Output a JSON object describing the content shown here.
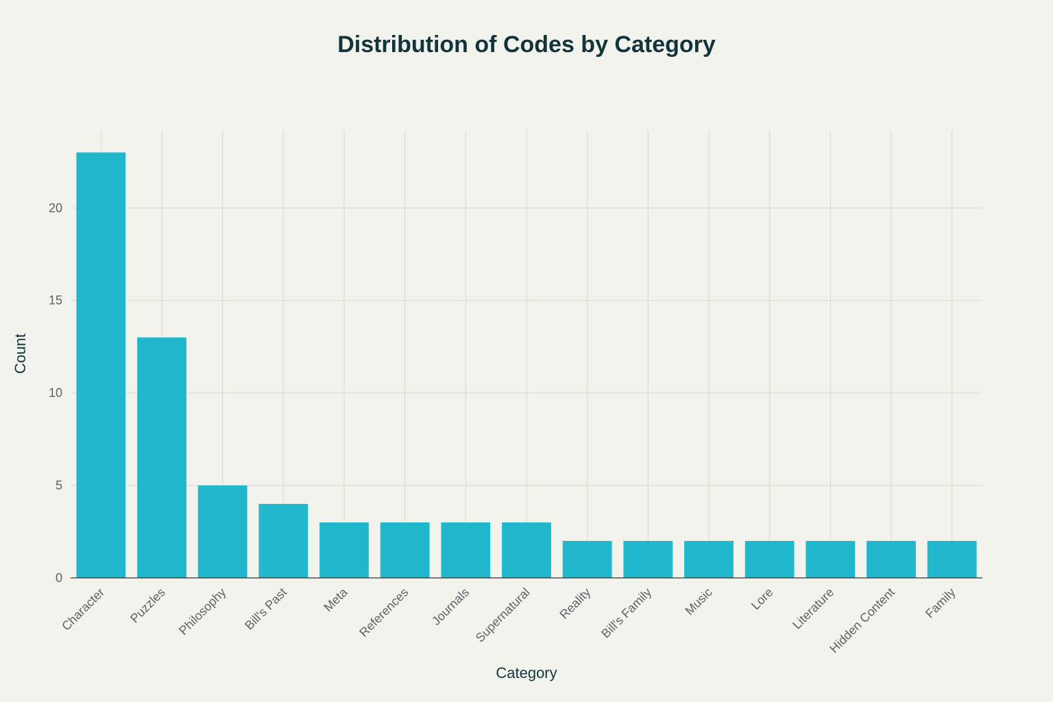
{
  "chart_data": {
    "type": "bar",
    "title": "Distribution of Codes by Category",
    "xlabel": "Category",
    "ylabel": "Count",
    "categories": [
      "Character",
      "Puzzles",
      "Philosophy",
      "Bill's Past",
      "Meta",
      "References",
      "Journals",
      "Supernatural",
      "Reality",
      "Bill's Family",
      "Music",
      "Lore",
      "Literature",
      "Hidden Content",
      "Family"
    ],
    "values": [
      23,
      13,
      5,
      4,
      3,
      3,
      3,
      3,
      2,
      2,
      2,
      2,
      2,
      2,
      2
    ],
    "ylim": [
      0,
      24.2
    ],
    "yticks": [
      0,
      5,
      10,
      15,
      20
    ],
    "grid": true,
    "legend": "none",
    "colors": {
      "bar": "#21b8ce",
      "background": "#f3f3ee",
      "title": "#13343b"
    }
  }
}
